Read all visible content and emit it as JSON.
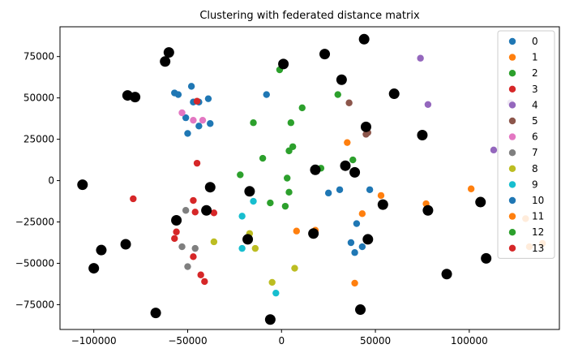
{
  "chart_data": {
    "type": "scatter",
    "title": "Clustering with federated distance matrix",
    "xlabel": "",
    "ylabel": "",
    "xlim": [
      -118000,
      148000
    ],
    "ylim": [
      -90000,
      93000
    ],
    "xticks": [
      -100000,
      -50000,
      0,
      50000,
      100000
    ],
    "xtick_labels": [
      "−100000",
      "−50000",
      "0",
      "50000",
      "100000"
    ],
    "yticks": [
      -75000,
      -50000,
      -25000,
      0,
      25000,
      50000,
      75000
    ],
    "ytick_labels": [
      "−75000",
      "−50000",
      "−25000",
      "0",
      "25000",
      "50000",
      "75000"
    ],
    "grid": false,
    "legend_position": "top-right",
    "series": [
      {
        "name": "0",
        "color": "#1f77b4",
        "points": [
          [
            -57000,
            53000
          ],
          [
            -55000,
            52000
          ],
          [
            -48000,
            57000
          ],
          [
            -47000,
            47500
          ],
          [
            -44000,
            47500
          ],
          [
            -51000,
            38000
          ],
          [
            -50000,
            28500
          ],
          [
            -44000,
            33000
          ],
          [
            -39000,
            49500
          ],
          [
            -38000,
            34500
          ],
          [
            -8000,
            52000
          ]
        ]
      },
      {
        "name": "1",
        "color": "#ff7f0e",
        "points": [
          [
            35000,
            23000
          ],
          [
            53000,
            -9000
          ],
          [
            43000,
            -20000
          ],
          [
            77000,
            -14000
          ],
          [
            101000,
            -5000
          ],
          [
            130000,
            -23000
          ],
          [
            139000,
            -38000
          ],
          [
            8000,
            -30500
          ],
          [
            18000,
            -30000
          ],
          [
            39000,
            -62000
          ]
        ]
      },
      {
        "name": "2",
        "color": "#2ca02c",
        "points": [
          [
            -1000,
            67000
          ],
          [
            30000,
            52000
          ],
          [
            11000,
            44000
          ],
          [
            -15000,
            35000
          ],
          [
            5000,
            35000
          ],
          [
            6000,
            20500
          ],
          [
            4000,
            18000
          ],
          [
            38000,
            12500
          ],
          [
            -10000,
            13500
          ],
          [
            21000,
            7500
          ],
          [
            -22000,
            3500
          ],
          [
            3000,
            1500
          ],
          [
            4000,
            -7000
          ],
          [
            -6000,
            -13500
          ],
          [
            2000,
            -15500
          ]
        ]
      },
      {
        "name": "3",
        "color": "#d62728",
        "points": [
          [
            -79000,
            -11000
          ],
          [
            -47000,
            -12000
          ],
          [
            -46000,
            -19000
          ],
          [
            -36000,
            -19500
          ],
          [
            -56000,
            -31000
          ],
          [
            -57000,
            -35000
          ],
          [
            -47000,
            -46000
          ],
          [
            -43000,
            -57000
          ],
          [
            -41000,
            -61000
          ],
          [
            -45000,
            48000
          ],
          [
            -45000,
            10500
          ]
        ]
      },
      {
        "name": "4",
        "color": "#9467bd",
        "points": [
          [
            74000,
            74000
          ],
          [
            78000,
            46000
          ],
          [
            113000,
            18500
          ],
          [
            122000,
            47000
          ]
        ]
      },
      {
        "name": "5",
        "color": "#8c564b",
        "points": [
          [
            36000,
            47000
          ],
          [
            45000,
            28000
          ],
          [
            46000,
            29000
          ]
        ]
      },
      {
        "name": "6",
        "color": "#e377c2",
        "points": [
          [
            -53000,
            41000
          ],
          [
            -47000,
            36500
          ],
          [
            -42000,
            36500
          ]
        ]
      },
      {
        "name": "7",
        "color": "#7f7f7f",
        "points": [
          [
            -51000,
            -18000
          ],
          [
            -53000,
            -40000
          ],
          [
            -46000,
            -41000
          ],
          [
            -50000,
            -52000
          ]
        ]
      },
      {
        "name": "8",
        "color": "#bcbd22",
        "points": [
          [
            -36000,
            -37000
          ],
          [
            -17000,
            -32000
          ],
          [
            -14000,
            -41000
          ],
          [
            -5000,
            -61500
          ],
          [
            7000,
            -53000
          ]
        ]
      },
      {
        "name": "9",
        "color": "#17becf",
        "points": [
          [
            -15000,
            -12500
          ],
          [
            -21000,
            -21500
          ],
          [
            -21000,
            -41000
          ],
          [
            -3000,
            -68000
          ]
        ]
      },
      {
        "name": "10",
        "color": "#1f77b4",
        "points": [
          [
            25000,
            -7500
          ],
          [
            31000,
            -5500
          ],
          [
            47000,
            -5500
          ],
          [
            40000,
            -26000
          ],
          [
            37000,
            -37500
          ],
          [
            39000,
            -43500
          ],
          [
            43000,
            -40000
          ]
        ]
      },
      {
        "name": "11",
        "color": "#ff7f0e",
        "points": [
          [
            132000,
            -40000
          ]
        ]
      },
      {
        "name": "12",
        "color": "#2ca02c",
        "points": []
      },
      {
        "name": "13",
        "color": "#d62728",
        "points": []
      }
    ],
    "centers": {
      "color": "#000000",
      "points": [
        [
          -60000,
          77500
        ],
        [
          -62000,
          72000
        ],
        [
          -82000,
          51500
        ],
        [
          -78000,
          50500
        ],
        [
          -106000,
          -2500
        ],
        [
          -38000,
          -4000
        ],
        [
          -17000,
          -6500
        ],
        [
          -40000,
          -18000
        ],
        [
          -56000,
          -24000
        ],
        [
          -96000,
          -42000
        ],
        [
          -83000,
          -38500
        ],
        [
          -100000,
          -53000
        ],
        [
          -67000,
          -80000
        ],
        [
          -18000,
          -35500
        ],
        [
          -6000,
          -84000
        ],
        [
          1000,
          70500
        ],
        [
          23000,
          76500
        ],
        [
          44000,
          85500
        ],
        [
          32000,
          61000
        ],
        [
          60000,
          52500
        ],
        [
          45000,
          32500
        ],
        [
          75000,
          27500
        ],
        [
          34000,
          9000
        ],
        [
          18000,
          6500
        ],
        [
          39000,
          5000
        ],
        [
          54000,
          -14500
        ],
        [
          78000,
          -18000
        ],
        [
          106000,
          -13000
        ],
        [
          17000,
          -32000
        ],
        [
          46000,
          -35500
        ],
        [
          42000,
          -78000
        ],
        [
          88000,
          -56500
        ],
        [
          109000,
          -47000
        ]
      ]
    }
  }
}
